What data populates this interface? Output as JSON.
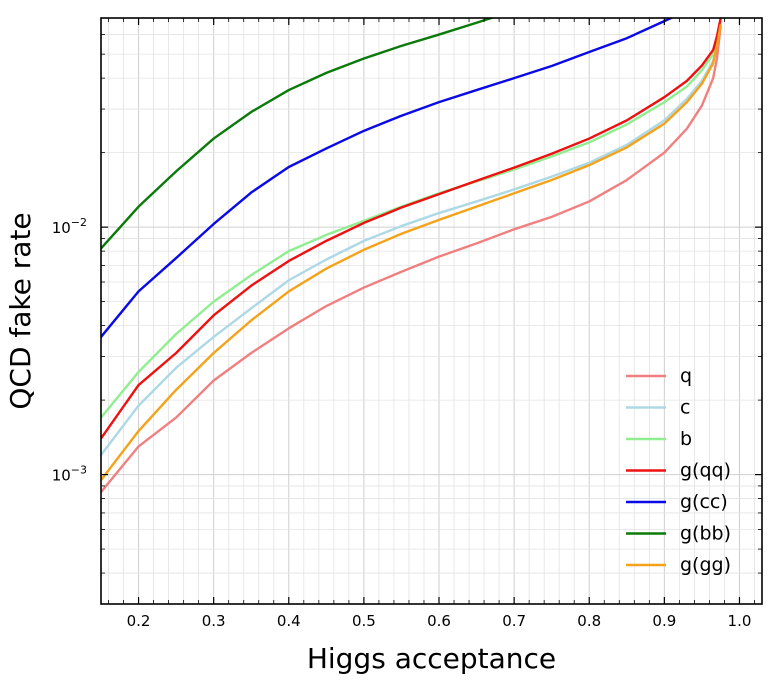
{
  "chart_data": {
    "type": "line",
    "title": "",
    "xlabel": "Higgs acceptance",
    "ylabel": "QCD fake rate",
    "xlim": [
      0.15,
      1.03
    ],
    "ylim": [
      0.0003,
      0.07
    ],
    "yscale": "log",
    "grid": true,
    "legend_position": "lower-right",
    "x_ticks": [
      0.2,
      0.3,
      0.4,
      0.5,
      0.6,
      0.7,
      0.8,
      0.9,
      1.0
    ],
    "x_tick_labels": [
      "0.2",
      "0.3",
      "0.4",
      "0.5",
      "0.6",
      "0.7",
      "0.8",
      "0.9",
      "1.0"
    ],
    "y_ticks": [
      0.001,
      0.01
    ],
    "y_tick_labels": [
      {
        "base": "10",
        "exp": "−3"
      },
      {
        "base": "10",
        "exp": "−2"
      }
    ],
    "series": [
      {
        "name": "q",
        "color": "#f08080",
        "x": [
          0.15,
          0.2,
          0.25,
          0.3,
          0.35,
          0.4,
          0.45,
          0.5,
          0.55,
          0.6,
          0.65,
          0.7,
          0.75,
          0.8,
          0.85,
          0.9,
          0.93,
          0.95,
          0.965,
          0.97,
          0.975
        ],
        "y": [
          0.00085,
          0.0013,
          0.0017,
          0.0024,
          0.0031,
          0.0039,
          0.0048,
          0.0057,
          0.0066,
          0.0076,
          0.0086,
          0.0098,
          0.011,
          0.0127,
          0.0155,
          0.02,
          0.025,
          0.031,
          0.04,
          0.048,
          0.065
        ]
      },
      {
        "name": "c",
        "color": "#add8e6",
        "x": [
          0.15,
          0.2,
          0.25,
          0.3,
          0.35,
          0.4,
          0.45,
          0.5,
          0.55,
          0.6,
          0.65,
          0.7,
          0.75,
          0.8,
          0.85,
          0.9,
          0.93,
          0.95,
          0.965,
          0.97,
          0.975
        ],
        "y": [
          0.0012,
          0.0019,
          0.0027,
          0.0036,
          0.0047,
          0.0061,
          0.0074,
          0.0088,
          0.0101,
          0.0114,
          0.0127,
          0.0142,
          0.016,
          0.0182,
          0.0215,
          0.027,
          0.033,
          0.039,
          0.047,
          0.055,
          0.067
        ]
      },
      {
        "name": "b",
        "color": "#90ee90",
        "x": [
          0.15,
          0.2,
          0.25,
          0.3,
          0.35,
          0.4,
          0.45,
          0.5,
          0.55,
          0.6,
          0.65,
          0.7,
          0.75,
          0.8,
          0.85,
          0.9,
          0.93,
          0.95,
          0.965,
          0.97,
          0.975
        ],
        "y": [
          0.0017,
          0.0026,
          0.0037,
          0.005,
          0.0064,
          0.008,
          0.0093,
          0.0106,
          0.0121,
          0.0137,
          0.0153,
          0.0171,
          0.0193,
          0.022,
          0.026,
          0.032,
          0.037,
          0.043,
          0.05,
          0.057,
          0.068
        ]
      },
      {
        "name": "g(qq)",
        "color": "#ee1111",
        "x": [
          0.15,
          0.2,
          0.25,
          0.3,
          0.35,
          0.4,
          0.45,
          0.5,
          0.55,
          0.6,
          0.65,
          0.7,
          0.75,
          0.8,
          0.85,
          0.9,
          0.93,
          0.95,
          0.965,
          0.97,
          0.975
        ],
        "y": [
          0.0014,
          0.0023,
          0.0031,
          0.0044,
          0.0058,
          0.0073,
          0.0088,
          0.0104,
          0.012,
          0.0136,
          0.0154,
          0.0174,
          0.0198,
          0.0228,
          0.027,
          0.0335,
          0.039,
          0.045,
          0.052,
          0.059,
          0.07
        ]
      },
      {
        "name": "g(cc)",
        "color": "#0a0ae6",
        "x": [
          0.15,
          0.2,
          0.25,
          0.3,
          0.35,
          0.4,
          0.45,
          0.5,
          0.55,
          0.6,
          0.65,
          0.7,
          0.75,
          0.8,
          0.85,
          0.9,
          0.93,
          0.95,
          0.965
        ],
        "y": [
          0.0036,
          0.0055,
          0.0075,
          0.0103,
          0.0138,
          0.0175,
          0.0208,
          0.0245,
          0.0282,
          0.032,
          0.0358,
          0.04,
          0.0448,
          0.051,
          0.058,
          0.068,
          0.075,
          0.082,
          0.09
        ]
      },
      {
        "name": "g(bb)",
        "color": "#0a7a0a",
        "x": [
          0.15,
          0.2,
          0.25,
          0.3,
          0.35,
          0.4,
          0.45,
          0.5,
          0.55,
          0.6,
          0.65,
          0.7
        ],
        "y": [
          0.0082,
          0.0121,
          0.0168,
          0.0228,
          0.0292,
          0.0358,
          0.042,
          0.048,
          0.054,
          0.06,
          0.067,
          0.075
        ]
      },
      {
        "name": "g(gg)",
        "color": "#f5a21b",
        "x": [
          0.15,
          0.2,
          0.25,
          0.3,
          0.35,
          0.4,
          0.45,
          0.5,
          0.55,
          0.6,
          0.65,
          0.7,
          0.75,
          0.8,
          0.85,
          0.9,
          0.93,
          0.95,
          0.965,
          0.97,
          0.975
        ],
        "y": [
          0.00095,
          0.0015,
          0.0022,
          0.0031,
          0.0042,
          0.0055,
          0.0068,
          0.0081,
          0.0094,
          0.0107,
          0.0121,
          0.0137,
          0.0155,
          0.0178,
          0.021,
          0.0262,
          0.032,
          0.038,
          0.046,
          0.054,
          0.066
        ]
      }
    ]
  }
}
